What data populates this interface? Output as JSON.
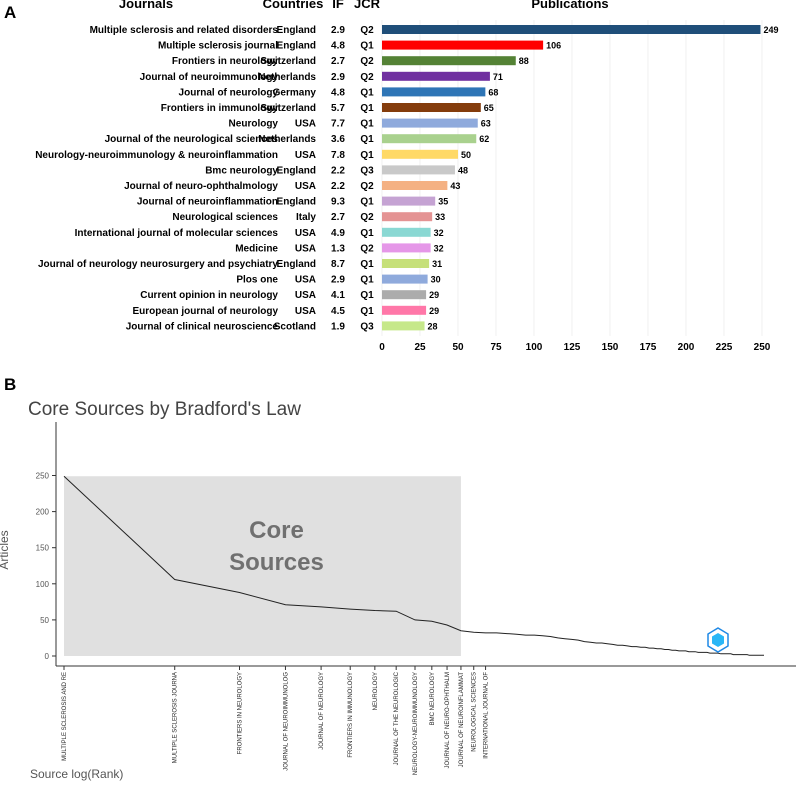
{
  "panel_a_label": "A",
  "panel_b_label": "B",
  "table_headers": {
    "journals": "Journals",
    "countries": "Countries",
    "if": "IF",
    "jcr": "JCR",
    "publications": "Publications"
  },
  "colors": [
    "#1f4e79",
    "#ff0000",
    "#548235",
    "#7030a0",
    "#2e75b6",
    "#843c0c",
    "#8faadc",
    "#a9d18e",
    "#ffd966",
    "#c9c9c9",
    "#f4b183",
    "#c5a3d3",
    "#e49393",
    "#8ad8d3",
    "#e597e8",
    "#c6e07a",
    "#8faadc",
    "#acacac",
    "#ff77a8",
    "#c6e88a"
  ],
  "chart_data": [
    {
      "type": "bar",
      "orientation": "horizontal",
      "title": "Publications",
      "categories": [
        "Multiple sclerosis and related disorders",
        "Multiple sclerosis journal",
        "Frontiers in neurology",
        "Journal of neuroimmunology",
        "Journal of neurology",
        "Frontiers in immunology",
        "Neurology",
        "Journal of the neurological sciences",
        "Neurology-neuroimmunology & neuroinflammation",
        "Bmc neurology",
        "Journal of neuro-ophthalmology",
        "Journal of neuroinflammation",
        "Neurological sciences",
        "International journal of molecular sciences",
        "Medicine",
        "Journal of neurology neurosurgery and psychiatry",
        "Plos one",
        "Current opinion in neurology",
        "European journal of neurology",
        "Journal of clinical neuroscience"
      ],
      "countries": [
        "England",
        "England",
        "Switzerland",
        "Netherlands",
        "Germany",
        "Switzerland",
        "USA",
        "Netherlands",
        "USA",
        "England",
        "USA",
        "England",
        "Italy",
        "USA",
        "USA",
        "England",
        "USA",
        "USA",
        "USA",
        "Scotland"
      ],
      "impact_factor": [
        "2.9",
        "4.8",
        "2.7",
        "2.9",
        "4.8",
        "5.7",
        "7.7",
        "3.6",
        "7.8",
        "2.2",
        "2.2",
        "9.3",
        "2.7",
        "4.9",
        "1.3",
        "8.7",
        "2.9",
        "4.1",
        "4.5",
        "1.9"
      ],
      "jcr": [
        "Q2",
        "Q1",
        "Q2",
        "Q2",
        "Q1",
        "Q1",
        "Q1",
        "Q1",
        "Q1",
        "Q3",
        "Q2",
        "Q1",
        "Q2",
        "Q1",
        "Q2",
        "Q1",
        "Q1",
        "Q1",
        "Q1",
        "Q3"
      ],
      "values": [
        249,
        106,
        88,
        71,
        68,
        65,
        63,
        62,
        50,
        48,
        43,
        35,
        33,
        32,
        32,
        31,
        30,
        29,
        29,
        28
      ],
      "xticks": [
        0,
        25,
        50,
        75,
        100,
        125,
        150,
        175,
        200,
        225,
        250
      ],
      "xlim": [
        0,
        260
      ],
      "grid": true
    },
    {
      "type": "line",
      "title": "Core Sources by Bradford's Law",
      "xlabel": "Source log(Rank)",
      "ylabel": "Articles",
      "yticks": [
        0,
        50,
        100,
        150,
        200,
        250
      ],
      "ylim": [
        0,
        265
      ],
      "core_label_line1": "Core",
      "core_label_line2": "Sources",
      "core_count": 12,
      "x_tick_labels": [
        "MULTIPLE SCLEROSIS AND RE",
        "MULTIPLE SCLEROSIS JOURNA",
        "FRONTIERS IN NEUROLOGY",
        "JOURNAL OF NEUROIMMUNOLOG",
        "JOURNAL OF NEUROLOGY",
        "FRONTIERS IN IMMUNOLOGY",
        "NEUROLOGY",
        "JOURNAL OF THE NEUROLOGIC",
        "NEUROLOGY-NEUROIMMUNOLOGY",
        "BMC NEUROLOGY",
        "JOURNAL OF NEURO-OPHTHALM",
        "JOURNAL OF NEUROINFLAMMAT",
        "NEUROLOGICAL SCIENCES",
        "INTERNATIONAL JOURNAL OF"
      ],
      "values": [
        249,
        106,
        88,
        71,
        68,
        65,
        63,
        62,
        50,
        48,
        43,
        35,
        33,
        32,
        32,
        31,
        30,
        29,
        29,
        28,
        27,
        25,
        24,
        23,
        22,
        20,
        19,
        18,
        18,
        17,
        16,
        15,
        15,
        14,
        13,
        13,
        12,
        12,
        11,
        11,
        10,
        10,
        9,
        9,
        8,
        8,
        7,
        7,
        7,
        6,
        6,
        6,
        5,
        5,
        5,
        5,
        4,
        4,
        4,
        4,
        3,
        3,
        3,
        3,
        3,
        2,
        2,
        2,
        2,
        2,
        2,
        2,
        1,
        1,
        1,
        1,
        1,
        1,
        1,
        1
      ]
    }
  ]
}
